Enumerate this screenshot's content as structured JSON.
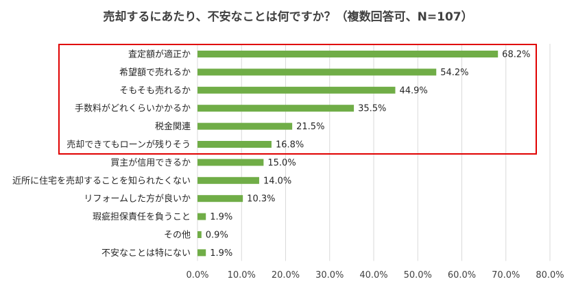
{
  "chart_data": {
    "type": "bar",
    "orientation": "horizontal",
    "title": "売却するにあたり、不安なことは何ですか？（複数回答可、N=107）",
    "categories": [
      "査定額が適正か",
      "希望額で売れるか",
      "そもそも売れるか",
      "手数料がどれくらいかかるか",
      "税金関連",
      "売却できてもローンが残りそう",
      "買主が信用できるか",
      "近所に住宅を売却することを知られたくない",
      "リフォームした方が良いか",
      "瑕疵担保責任を負うこと",
      "その他",
      "不安なことは特にない"
    ],
    "values": [
      68.2,
      54.2,
      44.9,
      35.5,
      21.5,
      16.8,
      15.0,
      14.0,
      10.3,
      1.9,
      0.9,
      1.9
    ],
    "value_labels": [
      "68.2%",
      "54.2%",
      "44.9%",
      "35.5%",
      "21.5%",
      "16.8%",
      "15.0%",
      "14.0%",
      "10.3%",
      "1.9%",
      "0.9%",
      "1.9%"
    ],
    "xlim": [
      0,
      80
    ],
    "xticks": [
      "0.0%",
      "10.0%",
      "20.0%",
      "30.0%",
      "40.0%",
      "50.0%",
      "60.0%",
      "70.0%",
      "80.0%"
    ],
    "highlighted_range": [
      0,
      5
    ],
    "grid": true,
    "colors": {
      "bar": "#70ad47",
      "highlight": "#e00000",
      "grid": "#d9d9d9"
    }
  }
}
